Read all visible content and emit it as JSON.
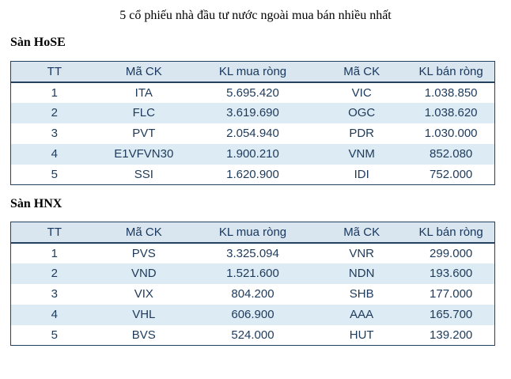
{
  "page": {
    "title": "5 cổ phiếu nhà đầu tư nước ngoài mua bán nhiều nhất"
  },
  "tables": [
    {
      "section_label": "Sàn HoSE",
      "headers": [
        "TT",
        "Mã CK",
        "KL mua ròng",
        "Mã CK",
        "KL bán ròng"
      ],
      "rows": [
        [
          "1",
          "ITA",
          "5.695.420",
          "VIC",
          "1.038.850"
        ],
        [
          "2",
          "FLC",
          "3.619.690",
          "OGC",
          "1.038.620"
        ],
        [
          "3",
          "PVT",
          "2.054.940",
          "PDR",
          "1.030.000"
        ],
        [
          "4",
          "E1VFVN30",
          "1.900.210",
          "VNM",
          "852.080"
        ],
        [
          "5",
          "SSI",
          "1.620.900",
          "IDI",
          "752.000"
        ]
      ]
    },
    {
      "section_label": "Sàn HNX",
      "headers": [
        "TT",
        "Mã CK",
        "KL mua ròng",
        "Mã CK",
        "KL bán ròng"
      ],
      "rows": [
        [
          "1",
          "PVS",
          "3.325.094",
          "VNR",
          "299.000"
        ],
        [
          "2",
          "VND",
          "1.521.600",
          "NDN",
          "193.600"
        ],
        [
          "3",
          "VIX",
          "804.200",
          "SHB",
          "177.000"
        ],
        [
          "4",
          "VHL",
          "606.900",
          "AAA",
          "165.700"
        ],
        [
          "5",
          "BVS",
          "524.000",
          "HUT",
          "139.200"
        ]
      ]
    }
  ],
  "colors": {
    "header_bg": "#d9e6f0",
    "alt_row_bg": "#dcebf4",
    "border": "#24415f",
    "header_text": "#17365d",
    "cell_text": "#1e3a5a",
    "title_text": "#000000",
    "page_bg": "#ffffff"
  }
}
